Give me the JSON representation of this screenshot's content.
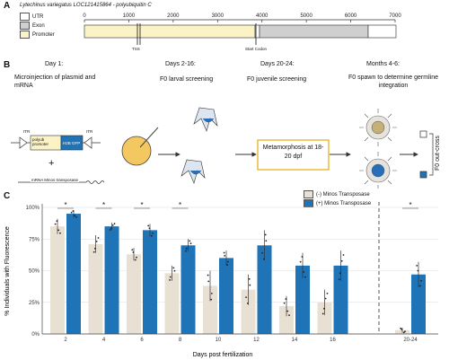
{
  "panel_a": {
    "letter": "A",
    "gene_title": "Lytechinus variegatus LOC121415864 - polyubiquitin C",
    "legend": [
      {
        "label": "UTR",
        "color": "#ffffff"
      },
      {
        "label": "Exon",
        "color": "#cfcfcf"
      },
      {
        "label": "Promoter",
        "color": "#fbf3c6"
      }
    ],
    "ticks": [
      "0",
      "1000",
      "2000",
      "3000",
      "4000",
      "5000",
      "6000",
      "7000"
    ],
    "tss_label": "TSS",
    "start_codon_label": "Start Codon"
  },
  "panel_b": {
    "letter": "B",
    "steps": [
      {
        "time": "Day 1:",
        "desc": "Microinjection of plasmid and mRNA"
      },
      {
        "time": "Days 2-16:",
        "desc": "F0 larval screening"
      },
      {
        "time": "Days 20-24:",
        "desc": "F0 juvenile screening"
      },
      {
        "time": "Months 4-6:",
        "desc": "F0 spawn to determine germline integration"
      }
    ],
    "plasmid": {
      "itr_left": "ITR",
      "itr_right": "ITR",
      "promoter": "polyub promoter",
      "reporter": "H2B GFP"
    },
    "plus": "+",
    "mrna_label": "mRNA Minos transposase",
    "metamorphosis": "Metamorphosis at 18-20 dpf",
    "outcross": "F0 out-cross"
  },
  "panel_c": {
    "letter": "C",
    "legend": [
      {
        "label": "(-) Minos Transposase",
        "color": "#e9e0d4"
      },
      {
        "label": "(+) Minos Transposase",
        "color": "#1f73b7"
      }
    ],
    "significance_marker": "*"
  },
  "chart_data": {
    "type": "bar",
    "ylabel": "% Individuals with Fluorescence",
    "xlabel": "Days post fertilization",
    "ylim": [
      0,
      100
    ],
    "yticks": [
      "0%",
      "25%",
      "50%",
      "75%",
      "100%"
    ],
    "categories": [
      "2",
      "4",
      "6",
      "8",
      "10",
      "12",
      "14",
      "16",
      "20-24"
    ],
    "series": [
      {
        "name": "(-) Minos Transposase",
        "color": "#e9e0d4",
        "values": [
          85,
          71,
          63,
          48,
          38,
          35,
          22,
          25,
          3
        ],
        "err": [
          6,
          7,
          5,
          6,
          12,
          12,
          8,
          10,
          2
        ]
      },
      {
        "name": "(+) Minos Transposase",
        "color": "#1f73b7",
        "values": [
          95,
          85,
          82,
          70,
          60,
          70,
          54,
          54,
          47
        ],
        "err": [
          3,
          3,
          5,
          5,
          6,
          12,
          10,
          12,
          10
        ]
      }
    ],
    "significant": [
      "2",
      "4",
      "6",
      "8",
      "20-24"
    ]
  }
}
